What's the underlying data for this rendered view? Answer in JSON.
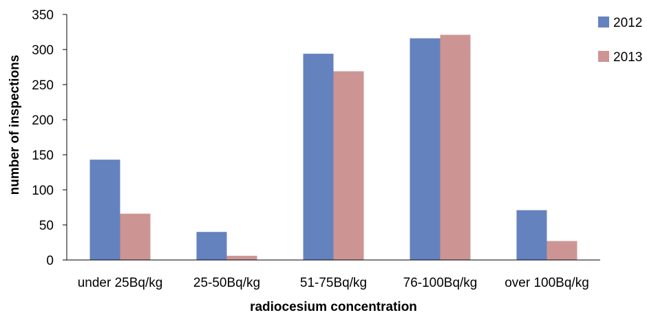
{
  "chart_data": {
    "type": "bar",
    "categories": [
      "under 25Bq/kg",
      "25-50Bq/kg",
      "51-75Bq/kg",
      "76-100Bq/kg",
      "over 100Bq/kg"
    ],
    "series": [
      {
        "name": "2012",
        "values": [
          143,
          40,
          294,
          316,
          71
        ],
        "color": "#6482BE"
      },
      {
        "name": "2013",
        "values": [
          66,
          6,
          269,
          321,
          27
        ],
        "color": "#CC9593"
      }
    ],
    "title": "",
    "xlabel": "radiocesium concentration",
    "ylabel": "number of inspections",
    "ylim": [
      0,
      350
    ],
    "yticks": [
      0,
      50,
      100,
      150,
      200,
      250,
      300,
      350
    ],
    "grid": false,
    "legend": "top-right"
  }
}
